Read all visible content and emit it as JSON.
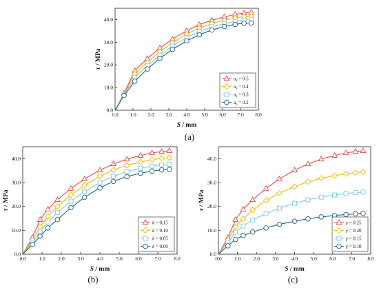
{
  "colors": {
    "red": "#e8484c",
    "orange": "#f5b800",
    "lightblue": "#7ec8e8",
    "darkblue": "#1f5f87"
  },
  "chart_data": [
    {
      "type": "line",
      "panel_label": "(a)",
      "xlabel_var": "S",
      "xlabel_unit": " / mm",
      "ylabel_var": "τ",
      "ylabel_unit": " / MPa",
      "xlim": [
        0,
        8
      ],
      "ylim": [
        0,
        45
      ],
      "xticks": [
        "0.0",
        "1.0",
        "2.0",
        "3.0",
        "4.0",
        "5.0",
        "6.0",
        "7.0",
        "8.0"
      ],
      "yticks": [
        "0.0",
        "10.0",
        "20.0",
        "30.0",
        "40.0"
      ],
      "legend_position": "lower-right",
      "x": [
        0.5,
        1.1,
        1.8,
        2.5,
        3.2,
        4.0,
        4.7,
        5.4,
        6.1,
        6.7,
        7.2,
        7.6
      ],
      "series": [
        {
          "name_sym": "u",
          "name_sub": "s",
          "name_val": " = 0.5",
          "color": "#e8484c",
          "marker": "triangle",
          "values": [
            7.5,
            17.5,
            22.8,
            27.5,
            31.4,
            35.1,
            37.8,
            39.7,
            41.2,
            42.3,
            42.9,
            43.2
          ]
        },
        {
          "name_sym": "u",
          "name_sub": "s",
          "name_val": " = 0.4",
          "color": "#f5b800",
          "marker": "diamond",
          "values": [
            7.2,
            16.0,
            21.2,
            25.9,
            29.8,
            33.6,
            36.3,
            38.2,
            39.7,
            40.7,
            41.3,
            41.6
          ]
        },
        {
          "name_sym": "u",
          "name_sub": "s",
          "name_val": " = 0.3",
          "color": "#7ec8e8",
          "marker": "square",
          "values": [
            6.9,
            14.5,
            19.7,
            24.3,
            28.3,
            32.1,
            34.8,
            36.8,
            38.2,
            39.2,
            39.8,
            40.1
          ]
        },
        {
          "name_sym": "u",
          "name_sub": "s",
          "name_val": " = 0.2",
          "color": "#1f5f87",
          "marker": "circle",
          "values": [
            6.5,
            12.8,
            18.2,
            22.9,
            26.9,
            30.6,
            33.3,
            35.4,
            36.9,
            37.9,
            38.4,
            38.5
          ]
        }
      ]
    },
    {
      "type": "line",
      "panel_label": "(b)",
      "xlabel_var": "S",
      "xlabel_unit": " / mm",
      "ylabel_var": "τ",
      "ylabel_unit": " / MPa",
      "xlim": [
        0,
        8
      ],
      "ylim": [
        0,
        45
      ],
      "xticks": [
        "0.0",
        "1.0",
        "2.0",
        "3.0",
        "4.0",
        "5.0",
        "6.0",
        "7.0",
        "8.0"
      ],
      "yticks": [
        "0.0",
        "10.0",
        "20.0",
        "30.0",
        "40.0"
      ],
      "legend_position": "lower-right",
      "x": [
        0.5,
        0.9,
        1.3,
        1.8,
        2.5,
        3.2,
        4.0,
        4.7,
        5.4,
        6.1,
        6.7,
        7.2,
        7.6
      ],
      "series": [
        {
          "name_sym": "k",
          "name_sub": "",
          "name_val": " = 0.15",
          "color": "#e8484c",
          "marker": "triangle",
          "values": [
            7.0,
            14.5,
            18.8,
            22.8,
            27.5,
            31.5,
            35.2,
            37.8,
            39.8,
            41.3,
            42.4,
            43.0,
            43.3
          ]
        },
        {
          "name_sym": "k",
          "name_sub": "",
          "name_val": " = 0.10",
          "color": "#f5b800",
          "marker": "diamond",
          "values": [
            6.0,
            11.5,
            15.8,
            20.0,
            24.8,
            28.8,
            32.6,
            35.3,
            37.2,
            38.6,
            39.6,
            40.1,
            40.3
          ]
        },
        {
          "name_sym": "k",
          "name_sub": "",
          "name_val": " = 0.05",
          "color": "#7ec8e8",
          "marker": "square",
          "values": [
            5.0,
            9.5,
            13.5,
            17.5,
            22.2,
            26.2,
            30.0,
            32.6,
            34.6,
            36.0,
            36.9,
            37.4,
            37.6
          ]
        },
        {
          "name_sym": "k",
          "name_sub": "",
          "name_val": " = 0.00",
          "color": "#1f5f87",
          "marker": "circle",
          "values": [
            4.0,
            7.5,
            11.0,
            14.5,
            19.5,
            23.8,
            27.8,
            30.5,
            32.5,
            33.9,
            34.8,
            35.3,
            35.5
          ]
        }
      ]
    },
    {
      "type": "line",
      "panel_label": "(c)",
      "xlabel_var": "S",
      "xlabel_unit": " / mm",
      "ylabel_var": "τ",
      "ylabel_unit": " / MPa",
      "xlim": [
        0,
        8
      ],
      "ylim": [
        0,
        45
      ],
      "xticks": [
        "0.0",
        "1.0",
        "2.0",
        "3.0",
        "4.0",
        "5.0",
        "6.0",
        "7.0",
        "8.0"
      ],
      "yticks": [
        "0.0",
        "10.0",
        "20.0",
        "30.0",
        "40.0"
      ],
      "legend_position": "lower-right",
      "x": [
        0.5,
        0.9,
        1.3,
        1.8,
        2.5,
        3.2,
        4.0,
        4.7,
        5.4,
        6.1,
        6.7,
        7.2,
        7.6
      ],
      "series": [
        {
          "name_sym": "γ",
          "name_sub": "",
          "name_val": " = 0.25",
          "color": "#e8484c",
          "marker": "triangle",
          "values": [
            7.0,
            14.5,
            18.8,
            22.8,
            27.5,
            31.5,
            35.2,
            37.8,
            39.8,
            41.3,
            42.4,
            43.0,
            43.3
          ]
        },
        {
          "name_sym": "γ",
          "name_sub": "",
          "name_val": " = 0.20",
          "color": "#f5b800",
          "marker": "diamond",
          "values": [
            6.0,
            11.5,
            14.8,
            18.5,
            22.5,
            25.6,
            28.3,
            30.3,
            31.8,
            32.9,
            33.7,
            34.2,
            34.5
          ]
        },
        {
          "name_sym": "γ",
          "name_sub": "",
          "name_val": " = 0.15",
          "color": "#7ec8e8",
          "marker": "square",
          "values": [
            5.0,
            9.2,
            11.8,
            14.3,
            17.0,
            19.3,
            21.3,
            22.8,
            23.9,
            24.8,
            25.4,
            25.8,
            26.0
          ]
        },
        {
          "name_sym": "γ",
          "name_sub": "",
          "name_val": " = 0.10",
          "color": "#1f5f87",
          "marker": "circle",
          "values": [
            3.5,
            6.2,
            7.8,
            9.3,
            11.0,
            12.5,
            13.8,
            14.8,
            15.6,
            16.2,
            16.6,
            16.9,
            17.1
          ]
        }
      ]
    }
  ]
}
